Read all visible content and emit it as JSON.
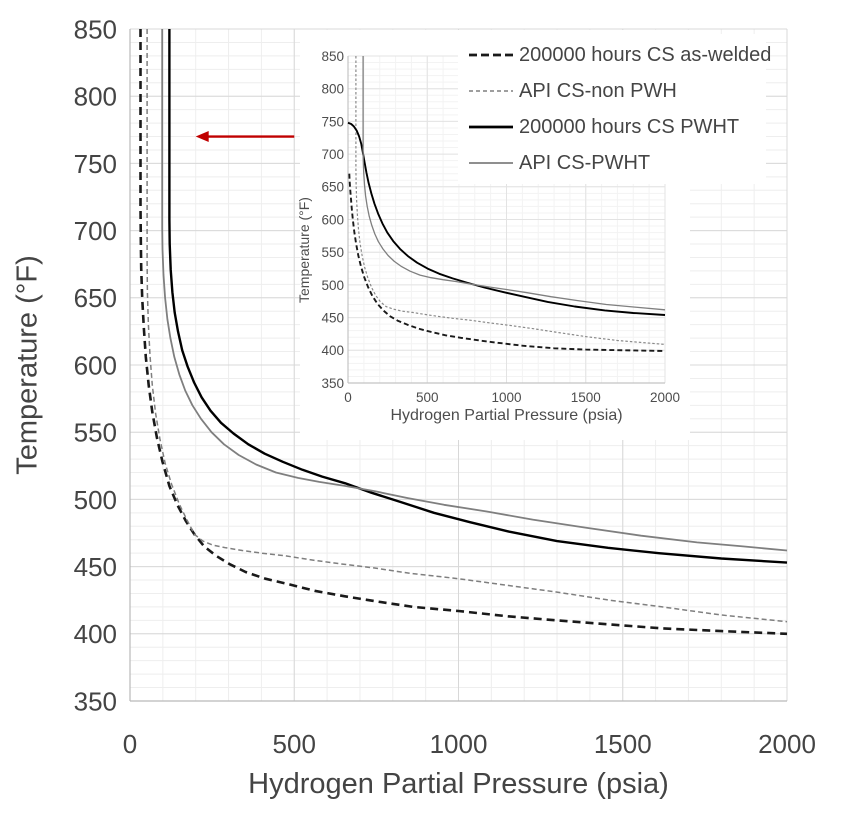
{
  "colors": {
    "background": "#ffffff",
    "text_main": "#444444",
    "text_inset": "#4d4d4d",
    "grid_minor": "#eeeeee",
    "grid_major": "#d8d8d8",
    "axis_line": "#b9b9b9",
    "curve_black": "#000000",
    "curve_gray": "#7f7f7f",
    "arrow_red": "#C00000"
  },
  "legend": {
    "items": [
      {
        "label": "200000 hours CS as-welded",
        "color": "#1a1a1a",
        "dash": "8 4",
        "width": 2.8
      },
      {
        "label": "API CS-non PWH",
        "color": "#7f7f7f",
        "dash": "4 3",
        "width": 1.6
      },
      {
        "label": "200000 hours CS PWHT",
        "color": "#000000",
        "dash": "",
        "width": 2.8
      },
      {
        "label": "API CS-PWHT",
        "color": "#7f7f7f",
        "dash": "",
        "width": 1.8
      }
    ]
  },
  "chart_data": [
    {
      "id": "main",
      "type": "line",
      "title": "",
      "xlabel": "Hydrogen Partial Pressure (psia)",
      "ylabel": "Temperature (°F)",
      "xlim": [
        0,
        2000
      ],
      "ylim": [
        350,
        850
      ],
      "xticks": [
        0,
        500,
        1000,
        1500,
        2000
      ],
      "yticks": [
        350,
        400,
        450,
        500,
        550,
        600,
        650,
        700,
        750,
        800,
        850
      ],
      "x_minor_step": 100,
      "y_minor_step": 10,
      "grid": true,
      "legend_position": "top-right",
      "series": [
        {
          "id": "cs-as-welded",
          "name": "200000 hours CS as-welded",
          "color": "#1a1a1a",
          "dash": "8 5",
          "width": 2.6,
          "points": [
            [
              32,
              850
            ],
            [
              32,
              718
            ],
            [
              33,
              694
            ],
            [
              34,
              672
            ],
            [
              37,
              650
            ],
            [
              42,
              628
            ],
            [
              48,
              606
            ],
            [
              57,
              585
            ],
            [
              68,
              565
            ],
            [
              82,
              546
            ],
            [
              99,
              528
            ],
            [
              120,
              510
            ],
            [
              144,
              496
            ],
            [
              170,
              484
            ],
            [
              196,
              474
            ],
            [
              226,
              465
            ],
            [
              262,
              458
            ],
            [
              302,
              452
            ],
            [
              352,
              446
            ],
            [
              412,
              441
            ],
            [
              482,
              437
            ],
            [
              562,
              432
            ],
            [
              652,
              428
            ],
            [
              752,
              424
            ],
            [
              862,
              420
            ],
            [
              1000,
              417
            ],
            [
              1150,
              413
            ],
            [
              1300,
              410
            ],
            [
              1460,
              407
            ],
            [
              1620,
              404
            ],
            [
              1800,
              402
            ],
            [
              2000,
              400
            ]
          ]
        },
        {
          "id": "api-cs-non-pwh",
          "name": "API CS-non PWH",
          "color": "#7f7f7f",
          "dash": "5 3",
          "width": 1.5,
          "points": [
            [
              52,
              850
            ],
            [
              52,
              678
            ],
            [
              53,
              654
            ],
            [
              56,
              630
            ],
            [
              61,
              607
            ],
            [
              68,
              585
            ],
            [
              78,
              564
            ],
            [
              91,
              545
            ],
            [
              107,
              527
            ],
            [
              127,
              511
            ],
            [
              151,
              496
            ],
            [
              173,
              485
            ],
            [
              196,
              474
            ],
            [
              222,
              469
            ],
            [
              252,
              466
            ],
            [
              292,
              464
            ],
            [
              342,
              462
            ],
            [
              402,
              460
            ],
            [
              472,
              458
            ],
            [
              552,
              455
            ],
            [
              642,
              452
            ],
            [
              742,
              449
            ],
            [
              852,
              445
            ],
            [
              1000,
              441
            ],
            [
              1150,
              436
            ],
            [
              1300,
              431
            ],
            [
              1460,
              425
            ],
            [
              1620,
              420
            ],
            [
              1800,
              414
            ],
            [
              2000,
              409
            ]
          ]
        },
        {
          "id": "cs-pwht",
          "name": "200000 hours CS PWHT",
          "color": "#000000",
          "dash": "",
          "width": 2.4,
          "points": [
            [
              120,
              850
            ],
            [
              120,
              708
            ],
            [
              121,
              690
            ],
            [
              124,
              671
            ],
            [
              129,
              654
            ],
            [
              136,
              639
            ],
            [
              146,
              625
            ],
            [
              159,
              611
            ],
            [
              175,
              599
            ],
            [
              195,
              587
            ],
            [
              218,
              576
            ],
            [
              245,
              566
            ],
            [
              277,
              557
            ],
            [
              315,
              549
            ],
            [
              360,
              541
            ],
            [
              410,
              534
            ],
            [
              465,
              528
            ],
            [
              525,
              522
            ],
            [
              585,
              517
            ],
            [
              655,
              512
            ],
            [
              735,
              505
            ],
            [
              825,
              498
            ],
            [
              925,
              490
            ],
            [
              1035,
              483
            ],
            [
              1155,
              476
            ],
            [
              1300,
              469
            ],
            [
              1455,
              464
            ],
            [
              1610,
              460
            ],
            [
              1800,
              456
            ],
            [
              2000,
              453
            ]
          ]
        },
        {
          "id": "api-cs-pwht",
          "name": "API CS-PWHT",
          "color": "#7f7f7f",
          "dash": "",
          "width": 1.8,
          "points": [
            [
              98,
              850
            ],
            [
              98,
              702
            ],
            [
              99,
              686
            ],
            [
              102,
              667
            ],
            [
              107,
              650
            ],
            [
              114,
              634
            ],
            [
              123,
              620
            ],
            [
              135,
              606
            ],
            [
              150,
              593
            ],
            [
              168,
              581
            ],
            [
              190,
              570
            ],
            [
              216,
              560
            ],
            [
              248,
              550
            ],
            [
              286,
              541
            ],
            [
              331,
              533
            ],
            [
              384,
              526
            ],
            [
              444,
              520
            ],
            [
              511,
              516
            ],
            [
              576,
              513
            ],
            [
              656,
              510
            ],
            [
              746,
              506
            ],
            [
              846,
              501
            ],
            [
              956,
              496
            ],
            [
              1086,
              491
            ],
            [
              1226,
              485
            ],
            [
              1386,
              479
            ],
            [
              1556,
              473
            ],
            [
              1726,
              468
            ],
            [
              1866,
              465
            ],
            [
              2000,
              462
            ]
          ]
        }
      ],
      "annotations": [
        {
          "type": "arrow",
          "y": 770,
          "x_tail": 500,
          "x_head": 200,
          "color": "#C00000"
        }
      ]
    },
    {
      "id": "inset",
      "type": "line",
      "title": "",
      "xlabel": "Hydrogen Partial Pressure (psia)",
      "ylabel": "Temperature (°F)",
      "xlim": [
        0,
        2000
      ],
      "ylim": [
        350,
        850
      ],
      "xticks": [
        0,
        500,
        1000,
        1500,
        2000
      ],
      "yticks": [
        350,
        400,
        450,
        500,
        550,
        600,
        650,
        700,
        750,
        800,
        850
      ],
      "x_minor_step": 100,
      "y_minor_step": 10,
      "grid": true,
      "series": [
        {
          "id": "cs-as-welded",
          "name": "200000 hours CS as-welded",
          "color": "#1a1a1a",
          "dash": "5 3",
          "width": 1.9,
          "points": [
            [
              8,
              670
            ],
            [
              10,
              660
            ],
            [
              13,
              648
            ],
            [
              18,
              633
            ],
            [
              24,
              616
            ],
            [
              31,
              599
            ],
            [
              40,
              581
            ],
            [
              51,
              563
            ],
            [
              65,
              545
            ],
            [
              82,
              528
            ],
            [
              102,
              512
            ],
            [
              126,
              497
            ],
            [
              154,
              483
            ],
            [
              186,
              471
            ],
            [
              223,
              461
            ],
            [
              266,
              452
            ],
            [
              316,
              445
            ],
            [
              376,
              439
            ],
            [
              446,
              433
            ],
            [
              526,
              428
            ],
            [
              616,
              423
            ],
            [
              716,
              419
            ],
            [
              831,
              415
            ],
            [
              961,
              411
            ],
            [
              1101,
              407
            ],
            [
              1301,
              403
            ],
            [
              1501,
              401
            ],
            [
              1751,
              400
            ],
            [
              2000,
              399
            ]
          ]
        },
        {
          "id": "api-cs-non-pwh",
          "name": "API CS-non PWH",
          "color": "#8a8a8a",
          "dash": "2.5 2",
          "width": 1.2,
          "points": [
            [
              50,
              850
            ],
            [
              50,
              680
            ],
            [
              51,
              655
            ],
            [
              54,
              630
            ],
            [
              59,
              607
            ],
            [
              66,
              585
            ],
            [
              76,
              564
            ],
            [
              89,
              545
            ],
            [
              105,
              527
            ],
            [
              125,
              511
            ],
            [
              149,
              496
            ],
            [
              175,
              484
            ],
            [
              205,
              474
            ],
            [
              240,
              467
            ],
            [
              285,
              463
            ],
            [
              340,
              460
            ],
            [
              405,
              458
            ],
            [
              480,
              455
            ],
            [
              565,
              452
            ],
            [
              660,
              449
            ],
            [
              770,
              446
            ],
            [
              890,
              442
            ],
            [
              1020,
              438
            ],
            [
              1170,
              433
            ],
            [
              1330,
              427
            ],
            [
              1500,
              421
            ],
            [
              1700,
              415
            ],
            [
              2000,
              409
            ]
          ]
        },
        {
          "id": "cs-pwht",
          "name": "200000 hours CS PWHT",
          "color": "#000000",
          "dash": "",
          "width": 1.9,
          "points": [
            [
              0,
              748
            ],
            [
              20,
              746
            ],
            [
              38,
              742
            ],
            [
              55,
              736
            ],
            [
              70,
              727
            ],
            [
              83,
              716
            ],
            [
              94,
              702
            ],
            [
              104,
              688
            ],
            [
              116,
              672
            ],
            [
              130,
              656
            ],
            [
              147,
              640
            ],
            [
              167,
              624
            ],
            [
              190,
              609
            ],
            [
              217,
              594
            ],
            [
              248,
              580
            ],
            [
              285,
              567
            ],
            [
              328,
              555
            ],
            [
              378,
              544
            ],
            [
              436,
              534
            ],
            [
              502,
              525
            ],
            [
              576,
              517
            ],
            [
              660,
              510
            ],
            [
              755,
              503
            ],
            [
              860,
              496
            ],
            [
              980,
              489
            ],
            [
              1110,
              482
            ],
            [
              1260,
              474
            ],
            [
              1430,
              467
            ],
            [
              1620,
              461
            ],
            [
              1800,
              457
            ],
            [
              2000,
              454
            ]
          ]
        },
        {
          "id": "api-cs-pwht",
          "name": "API CS-PWHT",
          "color": "#7f7f7f",
          "dash": "",
          "width": 1.3,
          "points": [
            [
              95,
              850
            ],
            [
              95,
              710
            ],
            [
              96,
              692
            ],
            [
              99,
              672
            ],
            [
              104,
              653
            ],
            [
              111,
              636
            ],
            [
              121,
              620
            ],
            [
              134,
              605
            ],
            [
              150,
              591
            ],
            [
              169,
              578
            ],
            [
              192,
              566
            ],
            [
              220,
              555
            ],
            [
              253,
              545
            ],
            [
              292,
              536
            ],
            [
              338,
              528
            ],
            [
              392,
              521
            ],
            [
              454,
              515
            ],
            [
              524,
              511
            ],
            [
              600,
              508
            ],
            [
              685,
              505
            ],
            [
              780,
              501
            ],
            [
              885,
              497
            ],
            [
              1000,
              493
            ],
            [
              1130,
              488
            ],
            [
              1280,
              482
            ],
            [
              1450,
              476
            ],
            [
              1630,
              470
            ],
            [
              1810,
              466
            ],
            [
              2000,
              462
            ]
          ]
        }
      ],
      "annotations": []
    }
  ]
}
